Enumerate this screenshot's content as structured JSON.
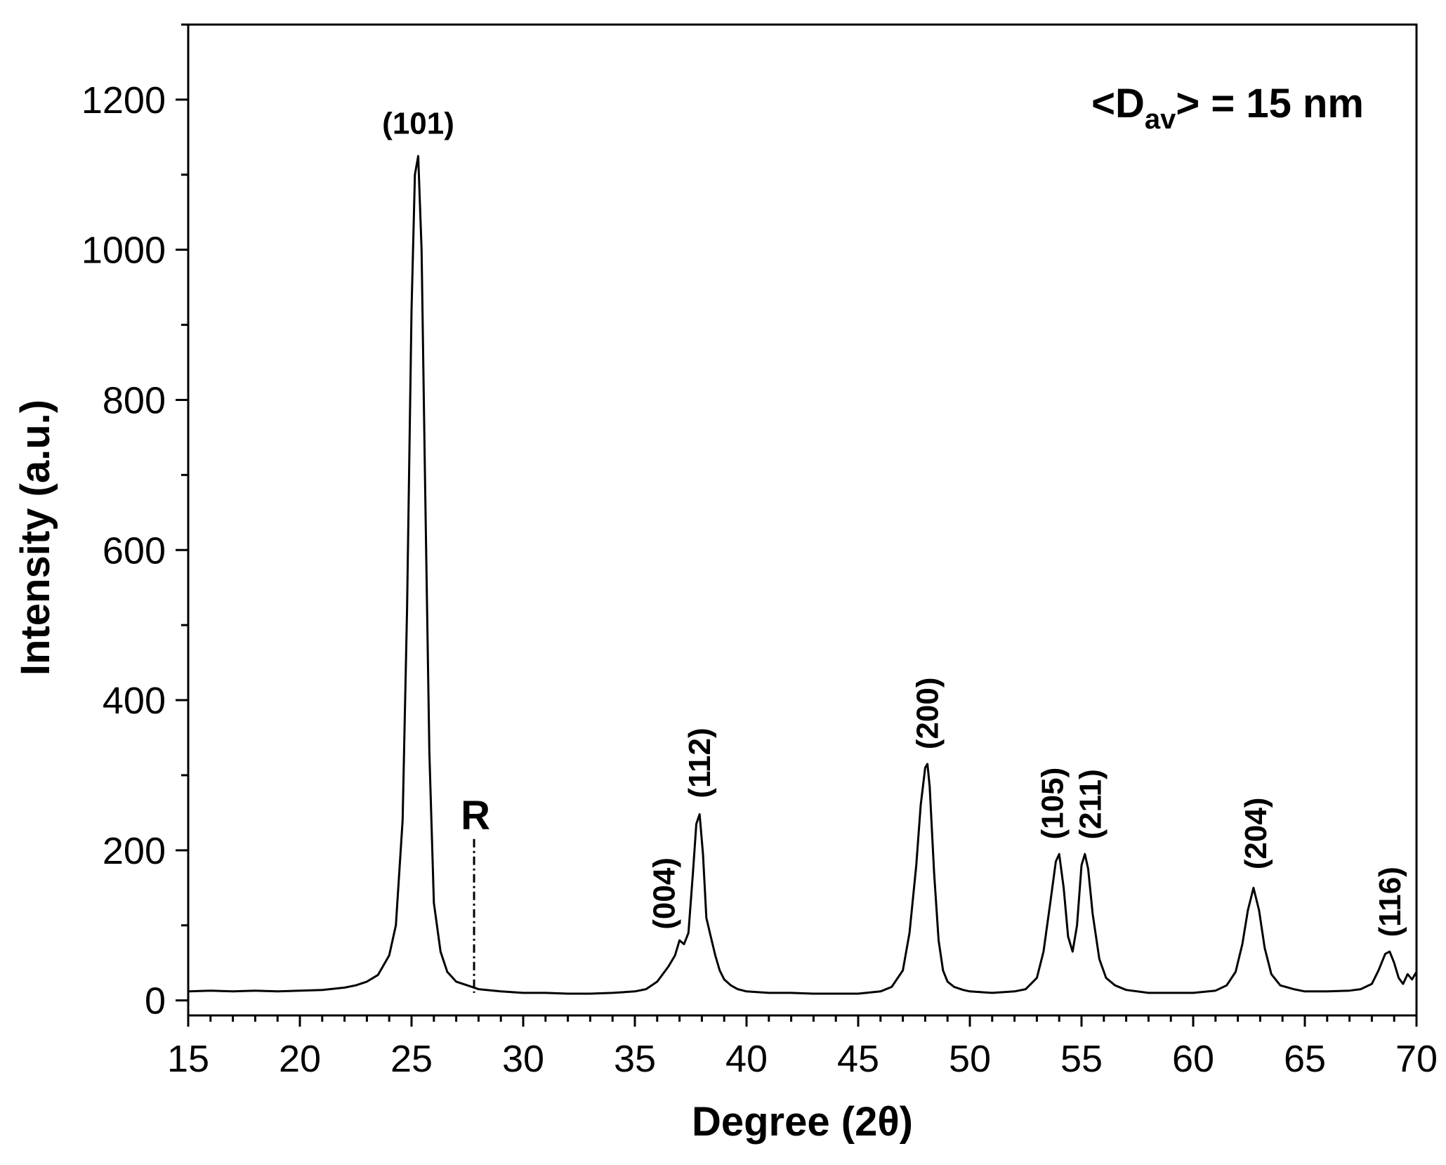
{
  "chart_data": {
    "type": "line",
    "title": "",
    "xlabel": "Degree (2θ)",
    "ylabel": "Intensity (a.u.)",
    "xlim": [
      15,
      70
    ],
    "ylim": [
      -20,
      1300
    ],
    "x_ticks": [
      15,
      20,
      25,
      30,
      35,
      40,
      45,
      50,
      55,
      60,
      65,
      70
    ],
    "x_tick_labels": [
      "15",
      "20",
      "25",
      "30",
      "35",
      "40",
      "45",
      "50",
      "55",
      "60",
      "65",
      "70"
    ],
    "y_ticks": [
      0,
      200,
      400,
      600,
      800,
      1000,
      1200
    ],
    "y_tick_labels": [
      "0",
      "200",
      "400",
      "600",
      "800",
      "1000",
      "1200"
    ],
    "grid": false,
    "background": "#ffffff",
    "line_color": "#000000",
    "series": [
      {
        "x": [
          15,
          16,
          17,
          18,
          19,
          20,
          21,
          22,
          22.5,
          23,
          23.5,
          24,
          24.3,
          24.6,
          24.8,
          25.0,
          25.15,
          25.3,
          25.45,
          25.6,
          25.8,
          26.0,
          26.3,
          26.6,
          27.0,
          27.5,
          28,
          29,
          30,
          31,
          32,
          33,
          34,
          35,
          35.5,
          36,
          36.5,
          36.8,
          37.0,
          37.2,
          37.4,
          37.6,
          37.75,
          37.9,
          38.05,
          38.2,
          38.4,
          38.6,
          38.8,
          39.0,
          39.3,
          39.6,
          40,
          41,
          42,
          43,
          44,
          45,
          46,
          46.5,
          47.0,
          47.3,
          47.6,
          47.8,
          48.0,
          48.1,
          48.2,
          48.4,
          48.6,
          48.8,
          49.0,
          49.3,
          49.7,
          50,
          51,
          52,
          52.5,
          53.0,
          53.3,
          53.6,
          53.85,
          54.0,
          54.2,
          54.4,
          54.6,
          54.8,
          55.0,
          55.15,
          55.3,
          55.5,
          55.8,
          56.1,
          56.5,
          57,
          58,
          59,
          60,
          61,
          61.5,
          61.9,
          62.2,
          62.45,
          62.7,
          62.95,
          63.2,
          63.5,
          63.9,
          64.5,
          65,
          66,
          67,
          67.5,
          68.0,
          68.3,
          68.6,
          68.8,
          69.0,
          69.2,
          69.4,
          69.6,
          69.8,
          70.0
        ],
        "y": [
          12,
          13,
          12,
          13,
          12,
          13,
          14,
          17,
          20,
          25,
          34,
          60,
          100,
          240,
          520,
          920,
          1100,
          1125,
          1000,
          700,
          330,
          130,
          65,
          38,
          25,
          20,
          15,
          12,
          10,
          10,
          9,
          9,
          10,
          12,
          15,
          25,
          45,
          60,
          80,
          75,
          90,
          170,
          235,
          248,
          195,
          110,
          85,
          60,
          40,
          28,
          20,
          15,
          12,
          10,
          10,
          9,
          9,
          9,
          12,
          18,
          40,
          90,
          180,
          260,
          310,
          315,
          285,
          170,
          80,
          40,
          25,
          18,
          14,
          12,
          10,
          12,
          15,
          30,
          65,
          130,
          185,
          195,
          150,
          85,
          65,
          100,
          180,
          195,
          175,
          115,
          55,
          30,
          20,
          14,
          10,
          10,
          10,
          13,
          20,
          38,
          75,
          120,
          150,
          120,
          70,
          35,
          20,
          15,
          12,
          12,
          13,
          15,
          22,
          40,
          62,
          65,
          50,
          30,
          22,
          35,
          28,
          38
        ]
      }
    ],
    "annotations": {
      "peaks": [
        {
          "label": "(101)",
          "x": 25.3,
          "y": 1130,
          "rotation": 0
        },
        {
          "label": "(004)",
          "x": 36.3,
          "y": 85,
          "rotation": -90
        },
        {
          "label": "(112)",
          "x": 37.9,
          "y": 260,
          "rotation": -90
        },
        {
          "label": "(200)",
          "x": 48.1,
          "y": 325,
          "rotation": -90
        },
        {
          "label": "(105)",
          "x": 53.7,
          "y": 205,
          "rotation": -90
        },
        {
          "label": "(211)",
          "x": 55.4,
          "y": 205,
          "rotation": -90
        },
        {
          "label": "(204)",
          "x": 62.8,
          "y": 165,
          "rotation": -90
        },
        {
          "label": "(116)",
          "x": 68.8,
          "y": 75,
          "rotation": -90
        }
      ],
      "rutile_marker": {
        "label": "R",
        "x": 27.8,
        "y_top": 215,
        "y_bottom": 10
      },
      "crystallite_size": {
        "main": "<D",
        "subscript": "av",
        "rest": "> = 15 nm"
      }
    }
  }
}
